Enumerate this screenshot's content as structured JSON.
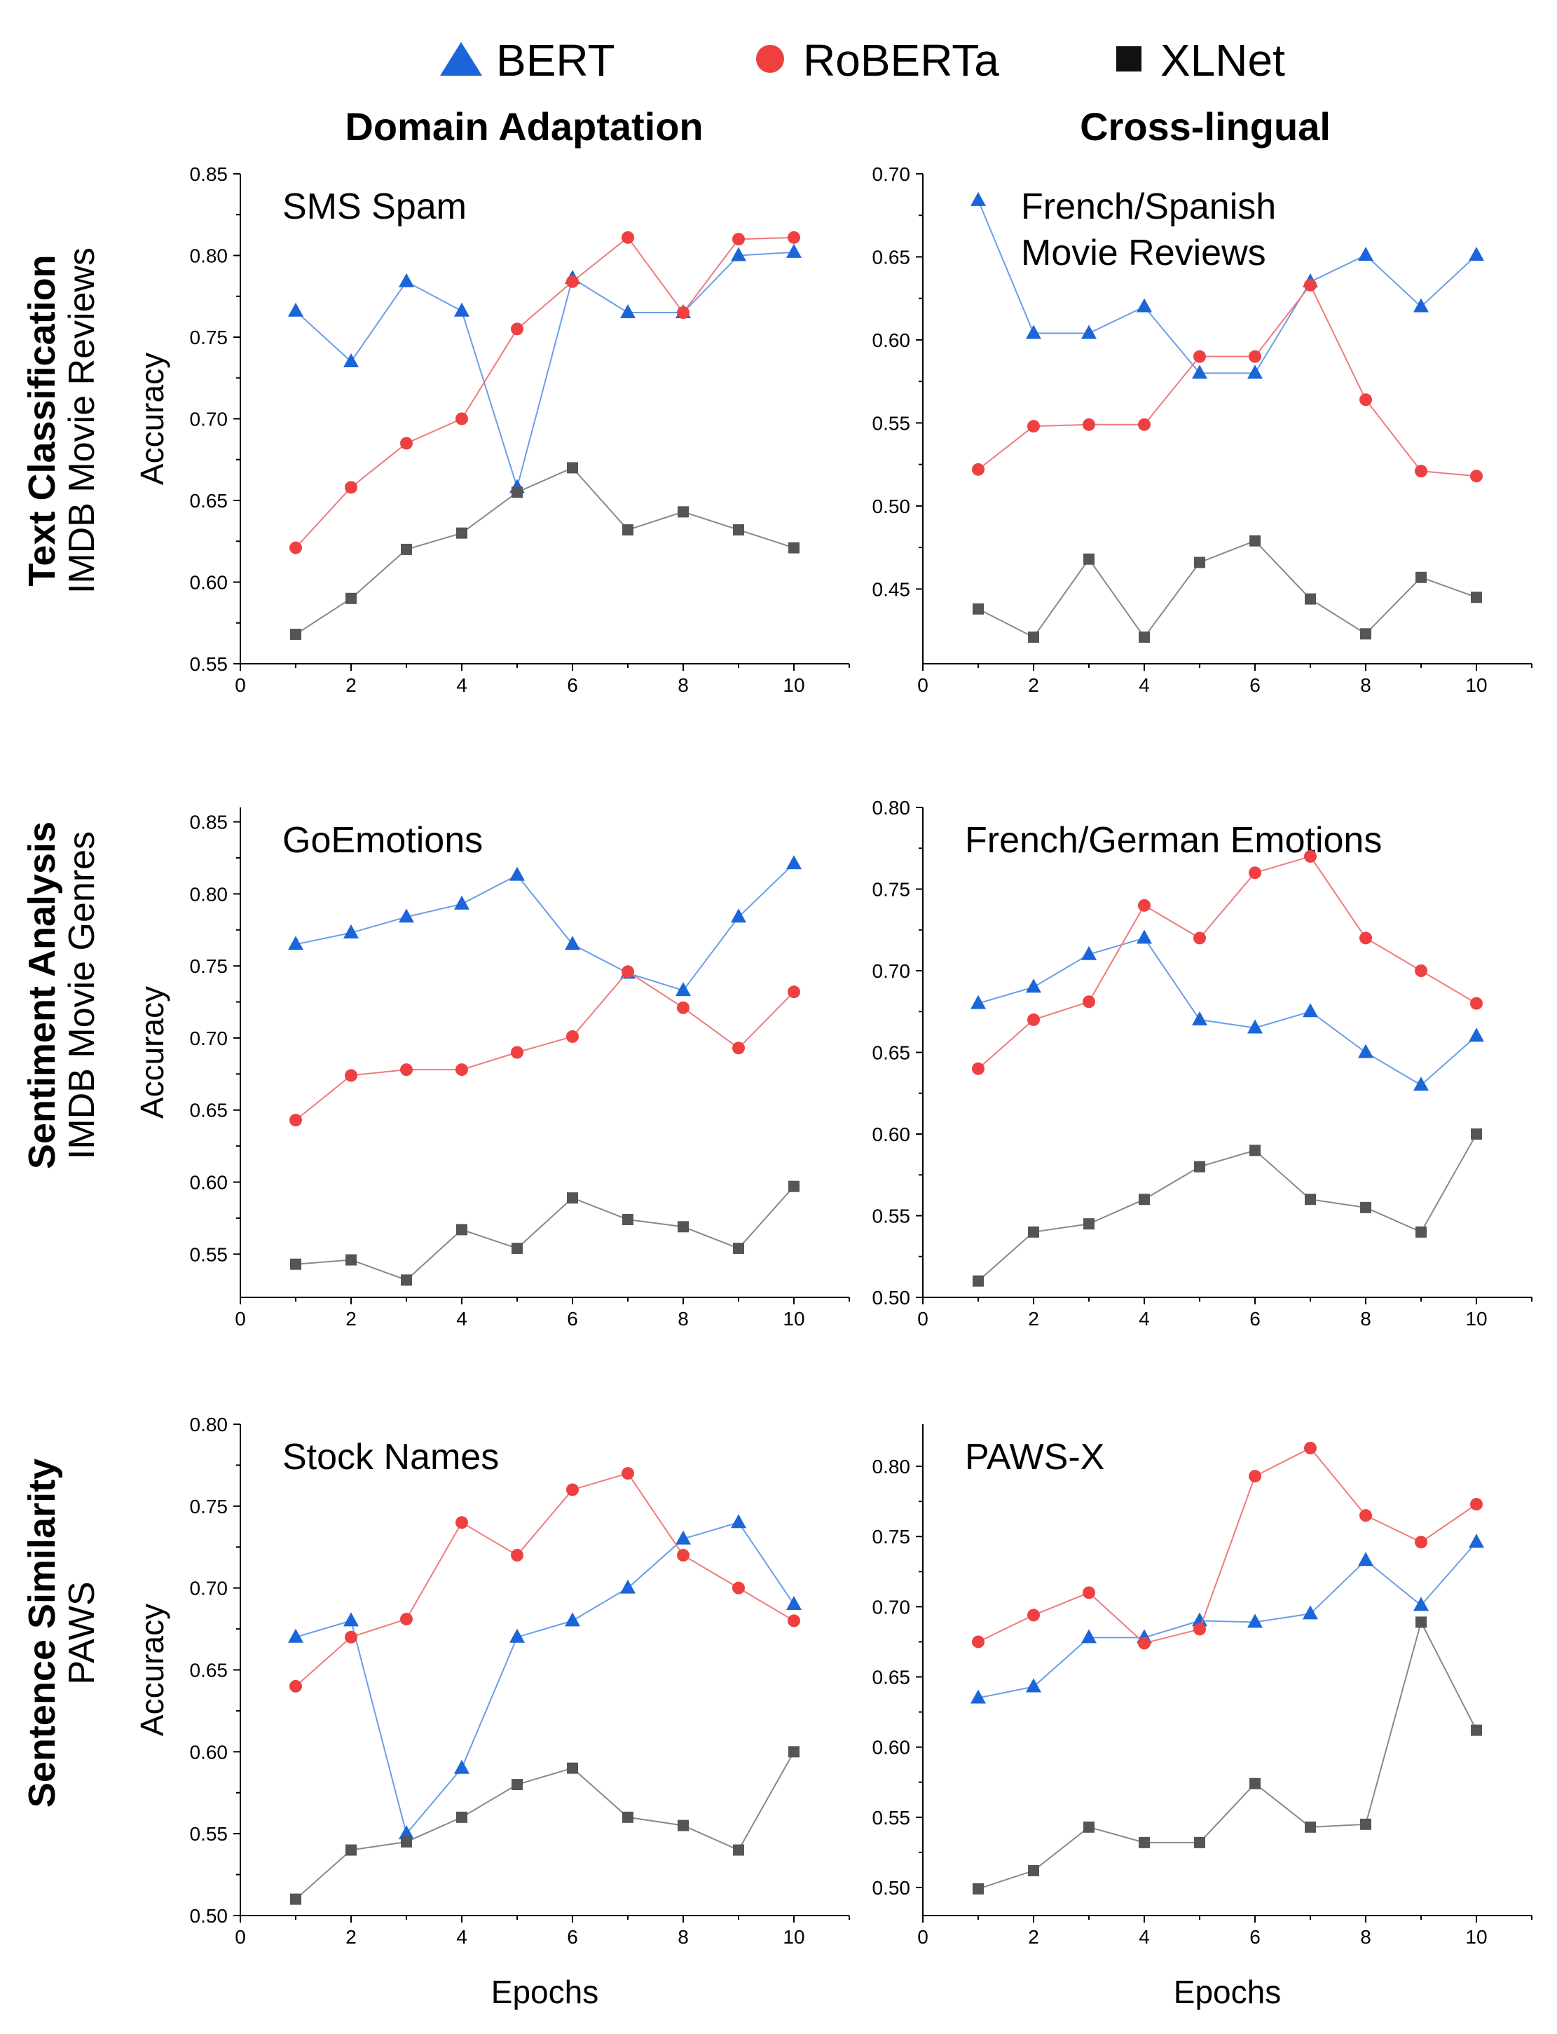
{
  "legend": [
    {
      "name": "BERT",
      "marker": "triangle",
      "color": "#1a66d9"
    },
    {
      "name": "RoBERTa",
      "marker": "circle",
      "color": "#ee4040"
    },
    {
      "name": "XLNet",
      "marker": "square",
      "color": "#111111"
    }
  ],
  "columns": [
    "Domain Adaptation",
    "Cross-lingual"
  ],
  "rows": [
    {
      "task": "Text Classification",
      "dataset": "IMDB Movie Reviews"
    },
    {
      "task": "Sentiment Analysis",
      "dataset": "IMDB Movie Genres"
    },
    {
      "task": "Sentence Similarity",
      "dataset": "PAWS"
    }
  ],
  "colors": {
    "bert": "#1a66d9",
    "roberta": "#ee4040",
    "xlnet": "#555555",
    "bert_line": "#6a9ee8",
    "roberta_line": "#f07a7a",
    "xlnet_line": "#888888"
  },
  "chart_data": [
    {
      "type": "line",
      "title": "SMS Spam",
      "xlabel": "",
      "ylabel": "Accuracy",
      "xlim": [
        0,
        11
      ],
      "xticks": [
        0,
        2,
        4,
        6,
        8,
        10
      ],
      "ylim": [
        0.55,
        0.85
      ],
      "yticks": [
        "0.55",
        "0.60",
        "0.65",
        "0.70",
        "0.75",
        "0.80",
        "0.85"
      ],
      "x": [
        1,
        2,
        3,
        4,
        5,
        6,
        7,
        8,
        9,
        10
      ],
      "series": [
        {
          "name": "BERT",
          "values": [
            0.766,
            0.735,
            0.784,
            0.766,
            0.658,
            0.786,
            0.765,
            0.765,
            0.8,
            0.802
          ]
        },
        {
          "name": "RoBERTa",
          "values": [
            0.621,
            0.658,
            0.685,
            0.7,
            0.755,
            0.784,
            0.811,
            0.765,
            0.81,
            0.811
          ]
        },
        {
          "name": "XLNet",
          "values": [
            0.568,
            0.59,
            0.62,
            0.63,
            0.655,
            0.67,
            0.632,
            0.643,
            0.632,
            0.621
          ]
        }
      ]
    },
    {
      "type": "line",
      "title": "French/Spanish\nMovie Reviews",
      "xlabel": "",
      "ylabel": "",
      "xlim": [
        0,
        11
      ],
      "xticks": [
        0,
        2,
        4,
        6,
        8,
        10
      ],
      "ylim": [
        0.405,
        0.7
      ],
      "yticks": [
        "0.45",
        "0.50",
        "0.55",
        "0.60",
        "0.65",
        "0.70"
      ],
      "x": [
        1,
        2,
        3,
        4,
        5,
        6,
        7,
        8,
        9,
        10
      ],
      "series": [
        {
          "name": "BERT",
          "values": [
            0.684,
            0.604,
            0.604,
            0.62,
            0.58,
            0.58,
            0.635,
            0.651,
            0.62,
            0.651
          ]
        },
        {
          "name": "RoBERTa",
          "values": [
            0.522,
            0.548,
            0.549,
            0.549,
            0.59,
            0.59,
            0.633,
            0.564,
            0.521,
            0.518
          ]
        },
        {
          "name": "XLNet",
          "values": [
            0.438,
            0.421,
            0.468,
            0.421,
            0.466,
            0.479,
            0.444,
            0.423,
            0.457,
            0.445
          ]
        }
      ]
    },
    {
      "type": "line",
      "title": "GoEmotions",
      "xlabel": "",
      "ylabel": "Accuracy",
      "xlim": [
        0,
        11
      ],
      "xticks": [
        0,
        2,
        4,
        6,
        8,
        10
      ],
      "ylim": [
        0.52,
        0.86
      ],
      "yticks": [
        "0.55",
        "0.60",
        "0.65",
        "0.70",
        "0.75",
        "0.80",
        "0.85"
      ],
      "x": [
        1,
        2,
        3,
        4,
        5,
        6,
        7,
        8,
        9,
        10
      ],
      "series": [
        {
          "name": "BERT",
          "values": [
            0.765,
            0.773,
            0.784,
            0.793,
            0.813,
            0.765,
            0.745,
            0.733,
            0.784,
            0.821
          ]
        },
        {
          "name": "RoBERTa",
          "values": [
            0.643,
            0.674,
            0.678,
            0.678,
            0.69,
            0.701,
            0.746,
            0.721,
            0.693,
            0.732
          ]
        },
        {
          "name": "XLNet",
          "values": [
            0.543,
            0.546,
            0.532,
            0.567,
            0.554,
            0.589,
            0.574,
            0.569,
            0.554,
            0.597
          ]
        }
      ]
    },
    {
      "type": "line",
      "title": "French/German Emotions",
      "xlabel": "",
      "ylabel": "",
      "xlim": [
        0,
        11
      ],
      "xticks": [
        0,
        2,
        4,
        6,
        8,
        10
      ],
      "ylim": [
        0.5,
        0.8
      ],
      "yticks": [
        "0.50",
        "0.55",
        "0.60",
        "0.65",
        "0.70",
        "0.75",
        "0.80"
      ],
      "x": [
        1,
        2,
        3,
        4,
        5,
        6,
        7,
        8,
        9,
        10
      ],
      "series": [
        {
          "name": "BERT",
          "values": [
            0.68,
            0.69,
            0.71,
            0.72,
            0.67,
            0.665,
            0.675,
            0.65,
            0.63,
            0.66
          ]
        },
        {
          "name": "RoBERTa",
          "values": [
            0.64,
            0.67,
            0.681,
            0.74,
            0.72,
            0.76,
            0.77,
            0.72,
            0.7,
            0.68
          ]
        },
        {
          "name": "XLNet",
          "values": [
            0.51,
            0.54,
            0.545,
            0.56,
            0.58,
            0.59,
            0.56,
            0.555,
            0.54,
            0.6
          ]
        }
      ]
    },
    {
      "type": "line",
      "title": "Stock Names",
      "xlabel": "Epochs",
      "ylabel": "Accuracy",
      "xlim": [
        0,
        11
      ],
      "xticks": [
        0,
        2,
        4,
        6,
        8,
        10
      ],
      "ylim": [
        0.5,
        0.8
      ],
      "yticks": [
        "0.50",
        "0.55",
        "0.60",
        "0.65",
        "0.70",
        "0.75",
        "0.80"
      ],
      "x": [
        1,
        2,
        3,
        4,
        5,
        6,
        7,
        8,
        9,
        10
      ],
      "series": [
        {
          "name": "BERT",
          "values": [
            0.67,
            0.68,
            0.55,
            0.59,
            0.67,
            0.68,
            0.7,
            0.73,
            0.74,
            0.69
          ]
        },
        {
          "name": "RoBERTa",
          "values": [
            0.64,
            0.67,
            0.681,
            0.74,
            0.72,
            0.76,
            0.77,
            0.72,
            0.7,
            0.68
          ]
        },
        {
          "name": "XLNet",
          "values": [
            0.51,
            0.54,
            0.545,
            0.56,
            0.58,
            0.59,
            0.56,
            0.555,
            0.54,
            0.6
          ]
        }
      ]
    },
    {
      "type": "line",
      "title": "PAWS-X",
      "xlabel": "Epochs",
      "ylabel": "",
      "xlim": [
        0,
        11
      ],
      "xticks": [
        0,
        2,
        4,
        6,
        8,
        10
      ],
      "ylim": [
        0.48,
        0.83
      ],
      "yticks": [
        "0.50",
        "0.55",
        "0.60",
        "0.65",
        "0.70",
        "0.75",
        "0.80"
      ],
      "x": [
        1,
        2,
        3,
        4,
        5,
        6,
        7,
        8,
        9,
        10
      ],
      "series": [
        {
          "name": "BERT",
          "values": [
            0.635,
            0.643,
            0.678,
            0.678,
            0.69,
            0.689,
            0.695,
            0.733,
            0.701,
            0.746
          ]
        },
        {
          "name": "RoBERTa",
          "values": [
            0.675,
            0.694,
            0.71,
            0.674,
            0.684,
            0.793,
            0.813,
            0.765,
            0.746,
            0.773
          ]
        },
        {
          "name": "XLNet",
          "values": [
            0.499,
            0.512,
            0.543,
            0.532,
            0.532,
            0.574,
            0.543,
            0.545,
            0.689,
            0.612
          ]
        }
      ]
    }
  ]
}
